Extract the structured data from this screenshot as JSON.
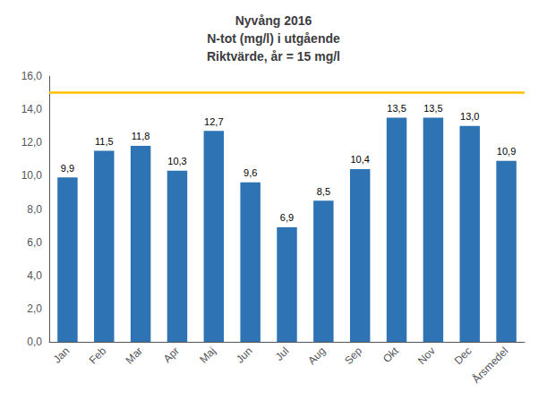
{
  "chart_data": {
    "type": "bar",
    "title": "Nyvång 2016\nN-tot (mg/l) i utgående\nRiktvärde, år = 15 mg/l",
    "categories": [
      "Jan",
      "Feb",
      "Mar",
      "Apr",
      "Maj",
      "Jun",
      "Jul",
      "Aug",
      "Sep",
      "Okt",
      "Nov",
      "Dec",
      "Årsmedel"
    ],
    "values": [
      9.9,
      11.5,
      11.8,
      10.3,
      12.7,
      9.6,
      6.9,
      8.5,
      10.4,
      13.5,
      13.5,
      13.0,
      10.9
    ],
    "value_labels": [
      "9,9",
      "11,5",
      "11,8",
      "10,3",
      "12,7",
      "9,6",
      "6,9",
      "8,5",
      "10,4",
      "13,5",
      "13,5",
      "13,0",
      "10,9"
    ],
    "color": "#2E74B5",
    "hlines": [
      {
        "value": 15.0,
        "color": "#FFC000"
      }
    ],
    "ylim": [
      0,
      16
    ],
    "yticks": [
      {
        "value": 0,
        "label": "0,0"
      },
      {
        "value": 2,
        "label": "2,0"
      },
      {
        "value": 4,
        "label": "4,0"
      },
      {
        "value": 6,
        "label": "6,0"
      },
      {
        "value": 8,
        "label": "8,0"
      },
      {
        "value": 10,
        "label": "10,0"
      },
      {
        "value": 12,
        "label": "12,0"
      },
      {
        "value": 14,
        "label": "14,0"
      },
      {
        "value": 16,
        "label": "16,0"
      }
    ],
    "data_labels": true,
    "grid": false
  }
}
